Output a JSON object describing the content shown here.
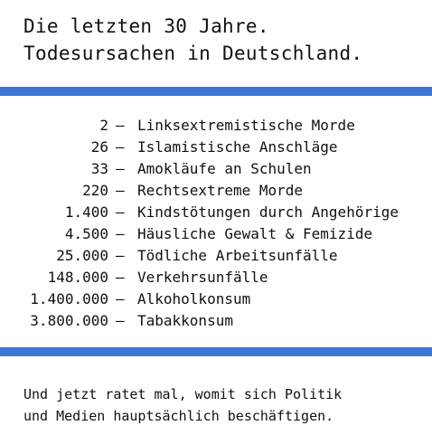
{
  "title": {
    "line1": "Die letzten 30 Jahre.",
    "line2": "Todesursachen in Deutschland."
  },
  "accent_color": "#3b78d6",
  "separator": "–",
  "stats": [
    {
      "value": "2",
      "label": "Linksextremistische Morde"
    },
    {
      "value": "26",
      "label": "Islamistische Anschläge"
    },
    {
      "value": "33",
      "label": "Amokläufe an Schulen"
    },
    {
      "value": "220",
      "label": "Rechtsextreme Morde"
    },
    {
      "value": "1.400",
      "label": "Kindstötungen durch Angehörige"
    },
    {
      "value": "4.500",
      "label": "Häusliche Gewalt & Femizide"
    },
    {
      "value": "25.000",
      "label": "Tödliche Arbeitsunfälle"
    },
    {
      "value": "148.000",
      "label": "Verkehrsunfälle"
    },
    {
      "value": "1.400.000",
      "label": "Alkoholkonsum"
    },
    {
      "value": "3.800.000",
      "label": "Tabakkonsum"
    }
  ],
  "footer": {
    "line1": "Und jetzt ratet mal, womit sich Politik",
    "line2": "und Medien hauptsächlich beschäftigen."
  }
}
